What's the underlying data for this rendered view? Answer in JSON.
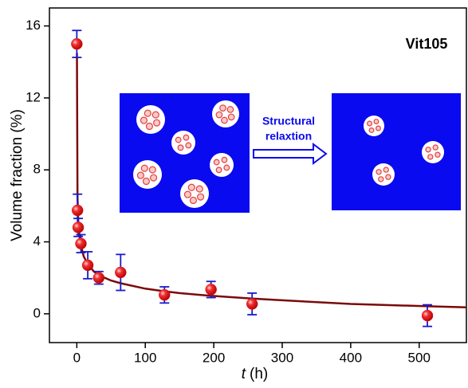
{
  "chart_data": {
    "type": "scatter",
    "y_label": "Volume fraction (%)",
    "x_label_var": "t",
    "x_label_unit": "(h)",
    "annotations": {
      "sample": "Vit105",
      "arrow_top": "Structural",
      "arrow_bottom": "relaxtion"
    },
    "xlim": [
      -40,
      569
    ],
    "ylim": [
      -1.6,
      17
    ],
    "xticks": [
      0,
      100,
      200,
      300,
      400,
      500
    ],
    "yticks": [
      0,
      4,
      8,
      12,
      16
    ],
    "series": [
      {
        "color": "#e8131b",
        "error_color": "#1a1acc",
        "x": [
          0,
          1,
          2,
          6,
          16,
          32,
          64,
          128,
          196,
          256,
          512
        ],
        "values": [
          15.0,
          5.75,
          4.8,
          3.9,
          2.7,
          2.0,
          2.3,
          1.05,
          1.35,
          0.55,
          -0.1
        ],
        "errors": [
          0.75,
          0.9,
          0.5,
          0.5,
          0.75,
          0.35,
          1.0,
          0.45,
          0.45,
          0.6,
          0.6
        ]
      }
    ],
    "fit": {
      "color": "#7a0a0a",
      "x": [
        0.2,
        1,
        2,
        4,
        6,
        10,
        16,
        25,
        32,
        50,
        64,
        100,
        128,
        150,
        196,
        256,
        300,
        400,
        512,
        569
      ],
      "values": [
        14.5,
        6.5,
        5.2,
        4.3,
        3.8,
        3.2,
        2.75,
        2.35,
        2.15,
        1.85,
        1.7,
        1.4,
        1.25,
        1.15,
        1.0,
        0.85,
        0.75,
        0.55,
        0.42,
        0.36
      ]
    }
  }
}
